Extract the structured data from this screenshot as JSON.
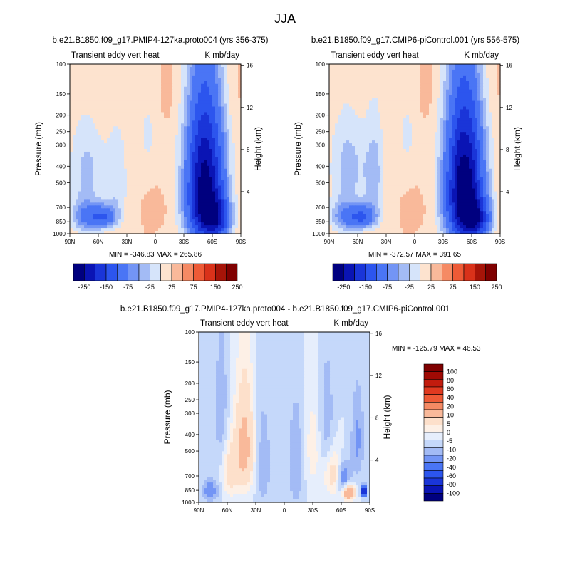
{
  "figure_title": "JJA",
  "colors": {
    "diverging_15": [
      "#00007f",
      "#0a14b4",
      "#1a35d8",
      "#2c55ee",
      "#4a75f5",
      "#7395f5",
      "#a3bbf5",
      "#d6e4fa",
      "#fde3cf",
      "#f9b99a",
      "#f58a64",
      "#ee5a36",
      "#d9321a",
      "#a61408",
      "#7f0000"
    ],
    "diverging_18": [
      "#00007f",
      "#0a14b4",
      "#1a35d8",
      "#2c55ee",
      "#4a75f5",
      "#7395f5",
      "#a3bbf5",
      "#c5d8fa",
      "#e6eefc",
      "#fdf0e6",
      "#fde0cb",
      "#f9b99a",
      "#f58a64",
      "#ee5a36",
      "#e03a20",
      "#c21c0e",
      "#a00a04",
      "#7f0000"
    ]
  },
  "chart_data": [
    {
      "id": "panel1",
      "type": "heatmap",
      "title": "b.e21.B1850.f09_g17.PMIP4-127ka.proto004 (yrs 356-375)",
      "left_label": "Transient eddy vert heat",
      "right_label": "K mb/day",
      "xlabel": "",
      "ylabel": "Pressure (mb)",
      "ylabel_right": "Height (km)",
      "x_ticks": [
        "90N",
        "60N",
        "30N",
        "0",
        "30S",
        "60S",
        "90S"
      ],
      "x_range": [
        90,
        -90
      ],
      "y_ticks": [
        100,
        150,
        200,
        250,
        300,
        400,
        500,
        700,
        850,
        1000
      ],
      "y_range_mb": [
        100,
        1000
      ],
      "height_ticks_km": [
        4,
        8,
        12,
        16
      ],
      "stats": "MIN = -346.83  MAX = 265.86",
      "min": -346.83,
      "max": 265.86,
      "contour_levels": [
        -300,
        -250,
        -200,
        -150,
        -100,
        -75,
        -50,
        -25,
        0,
        25,
        50,
        75,
        100,
        150,
        200,
        250,
        300
      ],
      "colorbar_labels": [
        "-250",
        "-150",
        "-75",
        "-25",
        "25",
        "75",
        "150",
        "250"
      ],
      "field": [
        {
          "lat": 75,
          "p": 800,
          "amp": -90,
          "slat": 10,
          "sp": 120
        },
        {
          "lat": 55,
          "p": 800,
          "amp": -140,
          "slat": 10,
          "sp": 90
        },
        {
          "lat": 72,
          "p": 420,
          "amp": -55,
          "slat": 14,
          "sp": 220
        },
        {
          "lat": 40,
          "p": 500,
          "amp": -45,
          "slat": 8,
          "sp": 260
        },
        {
          "lat": 8,
          "p": 260,
          "amp": -30,
          "slat": 8,
          "sp": 110
        },
        {
          "lat": -52,
          "p": 620,
          "amp": -330,
          "slat": 14,
          "sp": 320
        },
        {
          "lat": -65,
          "p": 820,
          "amp": -150,
          "slat": 10,
          "sp": 150
        },
        {
          "lat": -53,
          "p": 260,
          "amp": -70,
          "slat": 14,
          "sp": 160
        },
        {
          "lat": 60,
          "p": 140,
          "amp": 12,
          "slat": 22,
          "sp": 80
        },
        {
          "lat": -78,
          "p": 130,
          "amp": 10,
          "slat": 12,
          "sp": 70
        },
        {
          "lat": -15,
          "p": 150,
          "amp": 8,
          "slat": 10,
          "sp": 60
        },
        {
          "lat": -2,
          "p": 720,
          "amp": 12,
          "slat": 6,
          "sp": 90
        }
      ]
    },
    {
      "id": "panel2",
      "type": "heatmap",
      "title": "b.e21.B1850.f09_g17.CMIP6-piControl.001 (yrs 556-575)",
      "left_label": "Transient eddy vert heat",
      "right_label": "K mb/day",
      "xlabel": "",
      "ylabel": "Pressure (mb)",
      "ylabel_right": "Height (km)",
      "x_ticks": [
        "90N",
        "60N",
        "30N",
        "0",
        "30S",
        "60S",
        "90S"
      ],
      "x_range": [
        90,
        -90
      ],
      "y_ticks": [
        100,
        150,
        200,
        250,
        300,
        400,
        500,
        700,
        850,
        1000
      ],
      "y_range_mb": [
        100,
        1000
      ],
      "height_ticks_km": [
        4,
        8,
        12,
        16
      ],
      "stats": "MIN = -372.57  MAX = 391.65",
      "min": -372.57,
      "max": 391.65,
      "contour_levels": [
        -300,
        -250,
        -200,
        -150,
        -100,
        -75,
        -50,
        -25,
        0,
        25,
        50,
        75,
        100,
        150,
        200,
        250,
        300
      ],
      "colorbar_labels": [
        "-250",
        "-150",
        "-75",
        "-25",
        "25",
        "75",
        "150",
        "250"
      ],
      "field": [
        {
          "lat": 75,
          "p": 800,
          "amp": -85,
          "slat": 10,
          "sp": 120
        },
        {
          "lat": 55,
          "p": 800,
          "amp": -145,
          "slat": 10,
          "sp": 90
        },
        {
          "lat": 70,
          "p": 400,
          "amp": -60,
          "slat": 14,
          "sp": 220
        },
        {
          "lat": 42,
          "p": 450,
          "amp": -55,
          "slat": 8,
          "sp": 260
        },
        {
          "lat": 8,
          "p": 260,
          "amp": -30,
          "slat": 8,
          "sp": 110
        },
        {
          "lat": -52,
          "p": 620,
          "amp": -345,
          "slat": 14,
          "sp": 320
        },
        {
          "lat": -66,
          "p": 830,
          "amp": -160,
          "slat": 10,
          "sp": 150
        },
        {
          "lat": -53,
          "p": 260,
          "amp": -75,
          "slat": 14,
          "sp": 160
        },
        {
          "lat": 60,
          "p": 140,
          "amp": 12,
          "slat": 22,
          "sp": 80
        },
        {
          "lat": -78,
          "p": 130,
          "amp": 10,
          "slat": 12,
          "sp": 70
        },
        {
          "lat": -15,
          "p": 150,
          "amp": 8,
          "slat": 10,
          "sp": 60
        },
        {
          "lat": -2,
          "p": 720,
          "amp": 12,
          "slat": 6,
          "sp": 90
        }
      ]
    },
    {
      "id": "panel3",
      "type": "heatmap",
      "title": "b.e21.B1850.f09_g17.PMIP4-127ka.proto004 - b.e21.B1850.f09_g17.CMIP6-piControl.001",
      "left_label": "Transient eddy vert heat",
      "right_label": "K mb/day",
      "xlabel": "",
      "ylabel": "Pressure (mb)",
      "ylabel_right": "Height (km)",
      "x_ticks": [
        "90N",
        "60N",
        "30N",
        "0",
        "30S",
        "60S",
        "90S"
      ],
      "x_range": [
        90,
        -90
      ],
      "y_ticks": [
        100,
        150,
        200,
        250,
        300,
        400,
        500,
        700,
        850,
        1000
      ],
      "y_range_mb": [
        100,
        1000
      ],
      "height_ticks_km": [
        4,
        8,
        12,
        16
      ],
      "stats": "MIN = -125.79  MAX =  46.53",
      "min": -125.79,
      "max": 46.53,
      "contour_levels": [
        -100,
        -80,
        -60,
        -40,
        -20,
        -10,
        -5,
        0,
        5,
        10,
        20,
        40,
        60,
        80,
        100
      ],
      "colorbar_labels": [
        "100",
        "80",
        "60",
        "40",
        "20",
        "10",
        "5",
        "0",
        "-5",
        "-10",
        "-20",
        "-40",
        "-60",
        "-80",
        "-100"
      ],
      "field": [
        {
          "lat": 42,
          "p": 480,
          "amp": 26,
          "slat": 7,
          "sp": 230
        },
        {
          "lat": 57,
          "p": 640,
          "amp": 14,
          "slat": 6,
          "sp": 180
        },
        {
          "lat": -52,
          "p": 680,
          "amp": 16,
          "slat": 7,
          "sp": 150
        },
        {
          "lat": -68,
          "p": 880,
          "amp": 40,
          "slat": 4,
          "sp": 60
        },
        {
          "lat": -30,
          "p": 480,
          "amp": 8,
          "slat": 6,
          "sp": 220
        },
        {
          "lat": 66,
          "p": 300,
          "amp": -9,
          "slat": 6,
          "sp": 200
        },
        {
          "lat": 22,
          "p": 600,
          "amp": -9,
          "slat": 6,
          "sp": 300
        },
        {
          "lat": -12,
          "p": 600,
          "amp": -10,
          "slat": 6,
          "sp": 300
        },
        {
          "lat": -45,
          "p": 350,
          "amp": -8,
          "slat": 6,
          "sp": 220
        },
        {
          "lat": -62,
          "p": 720,
          "amp": -18,
          "slat": 5,
          "sp": 120
        },
        {
          "lat": -77,
          "p": 430,
          "amp": -12,
          "slat": 5,
          "sp": 180
        },
        {
          "lat": 78,
          "p": 850,
          "amp": -14,
          "slat": 6,
          "sp": 100
        },
        {
          "lat": -84,
          "p": 860,
          "amp": -125,
          "slat": 1.5,
          "sp": 35
        }
      ]
    }
  ]
}
